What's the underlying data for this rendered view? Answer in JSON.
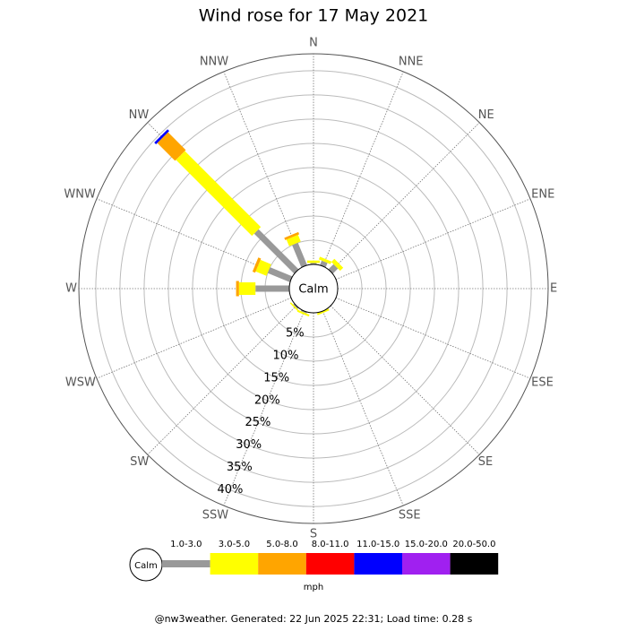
{
  "chart_data": {
    "type": "wind-rose",
    "title": "Wind rose for 17 May 2021",
    "directions": [
      "N",
      "NNE",
      "NE",
      "ENE",
      "E",
      "ESE",
      "SE",
      "SSE",
      "S",
      "SSW",
      "SW",
      "WSW",
      "W",
      "WNW",
      "NW",
      "NNW"
    ],
    "calm_label": "Calm",
    "units": "mph",
    "rlim": [
      0,
      43.5
    ],
    "rticks": [
      {
        "value": 5,
        "label": "5%"
      },
      {
        "value": 10,
        "label": "10%"
      },
      {
        "value": 15,
        "label": "15%"
      },
      {
        "value": 20,
        "label": "20%"
      },
      {
        "value": 25,
        "label": "25%"
      },
      {
        "value": 30,
        "label": "30%"
      },
      {
        "value": 35,
        "label": "35%"
      },
      {
        "value": 40,
        "label": "40%"
      }
    ],
    "series": [
      {
        "name": "1.0-3.0",
        "color": "#999999",
        "values": [
          0.3,
          1,
          1.5,
          0,
          0,
          0,
          0,
          0,
          0,
          0.3,
          0.3,
          0,
          7,
          5,
          11.7,
          5
        ]
      },
      {
        "name": "3.0-5.0",
        "color": "#ffff00",
        "values": [
          0.5,
          0.6,
          0.9,
          0,
          0,
          0,
          0,
          0.4,
          0,
          0.4,
          0.3,
          0,
          3.4,
          2.4,
          22.2,
          1.5
        ]
      },
      {
        "name": "5.0-8.0",
        "color": "#ffa500",
        "values": [
          0,
          0,
          0,
          0,
          0,
          0,
          0,
          0,
          0,
          0,
          0,
          0,
          0.6,
          0.6,
          5.2,
          0.5
        ]
      },
      {
        "name": "8.0-11.0",
        "color": "#ff0000",
        "values": [
          0,
          0,
          0,
          0,
          0,
          0,
          0,
          0,
          0,
          0,
          0,
          0,
          0,
          0,
          0,
          0
        ]
      },
      {
        "name": "11.0-15.0",
        "color": "#0000ff",
        "values": [
          0,
          0,
          0,
          0,
          0,
          0,
          0,
          0,
          0,
          0,
          0,
          0,
          0,
          0,
          0.5,
          0
        ]
      },
      {
        "name": "15.0-20.0",
        "color": "#a020f0",
        "values": [
          0,
          0,
          0,
          0,
          0,
          0,
          0,
          0,
          0,
          0,
          0,
          0,
          0,
          0,
          0,
          0
        ]
      },
      {
        "name": "20.0-50.0",
        "color": "#000000",
        "values": [
          0,
          0,
          0,
          0,
          0,
          0,
          0,
          0,
          0,
          0,
          0,
          0,
          0,
          0,
          0,
          0
        ]
      }
    ]
  },
  "footer": "@nw3weather. Generated: 22 Jun 2025 22:31; Load time: 0.28 s"
}
